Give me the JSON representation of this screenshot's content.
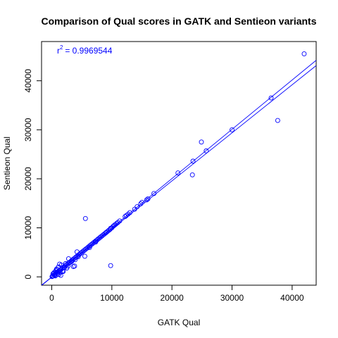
{
  "chart_data": {
    "type": "scatter",
    "title": "Comparison of Qual scores in GATK and Sentieon variants",
    "xlabel": "GATK Qual",
    "ylabel": "Sentieon Qual",
    "xlim": [
      -1700,
      44000
    ],
    "ylim": [
      -1700,
      48000
    ],
    "xticks": [
      0,
      10000,
      20000,
      30000,
      40000
    ],
    "xtick_labels": [
      "0",
      "10000",
      "20000",
      "30000",
      "40000"
    ],
    "yticks": [
      0,
      10000,
      20000,
      30000,
      40000
    ],
    "ytick_labels": [
      "0",
      "10000",
      "20000",
      "30000",
      "40000"
    ],
    "grid": false,
    "annotation": {
      "r_symbol": "r",
      "exponent": "2",
      "value_text": " = 0.9969544"
    },
    "point_color": "#0000ff",
    "marker": "open-circle",
    "series": [
      {
        "values_x": [
          42000,
          36500,
          37600,
          30000,
          24900,
          25700,
          23500,
          23400,
          21000,
          17000,
          16000,
          15800,
          15000,
          14800,
          14200,
          13800,
          13000,
          12700,
          12400,
          12200,
          11300,
          11000,
          10800,
          10600,
          10400,
          10200,
          10000,
          9800,
          9700,
          9500,
          9300,
          9100,
          9000,
          8800,
          8600,
          8400,
          8200,
          8000,
          7800,
          7600,
          7400,
          7200,
          7000,
          6800,
          6600,
          6400,
          6200,
          6000,
          5800,
          5600,
          5400,
          5200,
          5000,
          4800,
          4600,
          4400,
          4200,
          4000,
          3800,
          3600,
          3400,
          3200,
          3000,
          2800,
          2600,
          2400,
          2200,
          2000,
          1800,
          1600,
          1400,
          1200,
          1000,
          800,
          600,
          400,
          200,
          100,
          50,
          5600,
          9800,
          5500,
          4200,
          3600,
          3800,
          2800,
          2100,
          1600,
          1300,
          1100,
          900,
          700,
          1900,
          2500,
          3000,
          1500,
          1200,
          800,
          400,
          600,
          300,
          1000,
          1800,
          2300,
          3300,
          4400,
          6300,
          7300,
          500,
          700,
          200,
          1400,
          2700,
          3900
        ],
        "values_y": [
          45500,
          36500,
          31900,
          30000,
          27500,
          25700,
          23600,
          20800,
          21200,
          17000,
          15900,
          15700,
          15200,
          14900,
          14300,
          13800,
          13100,
          12800,
          12500,
          12300,
          11400,
          11100,
          10900,
          10700,
          10500,
          10300,
          10000,
          9900,
          9700,
          9500,
          9300,
          9100,
          9000,
          8800,
          8600,
          8400,
          8200,
          8000,
          7800,
          7600,
          7400,
          7200,
          7000,
          6800,
          6600,
          6400,
          6200,
          6000,
          5800,
          5600,
          5400,
          5200,
          5000,
          4800,
          4600,
          4400,
          4200,
          4000,
          3800,
          3600,
          3400,
          3200,
          3000,
          2800,
          2600,
          2400,
          2200,
          2000,
          1800,
          1600,
          1400,
          1200,
          1000,
          800,
          600,
          400,
          200,
          100,
          50,
          11900,
          2300,
          4200,
          5100,
          2100,
          2200,
          3700,
          1900,
          2400,
          2600,
          2000,
          1500,
          1300,
          1100,
          1800,
          2900,
          300,
          500,
          1600,
          900,
          200,
          700,
          600,
          1200,
          2700,
          3100,
          4100,
          6000,
          7100,
          300,
          1000,
          600,
          900,
          2200,
          3500
        ]
      }
    ],
    "fit_lines": [
      {
        "x": [
          -1700,
          44000
        ],
        "y": [
          -1764,
          44176
        ]
      },
      {
        "x": [
          -1700,
          44000
        ],
        "y": [
          -1700,
          43100
        ]
      }
    ]
  }
}
